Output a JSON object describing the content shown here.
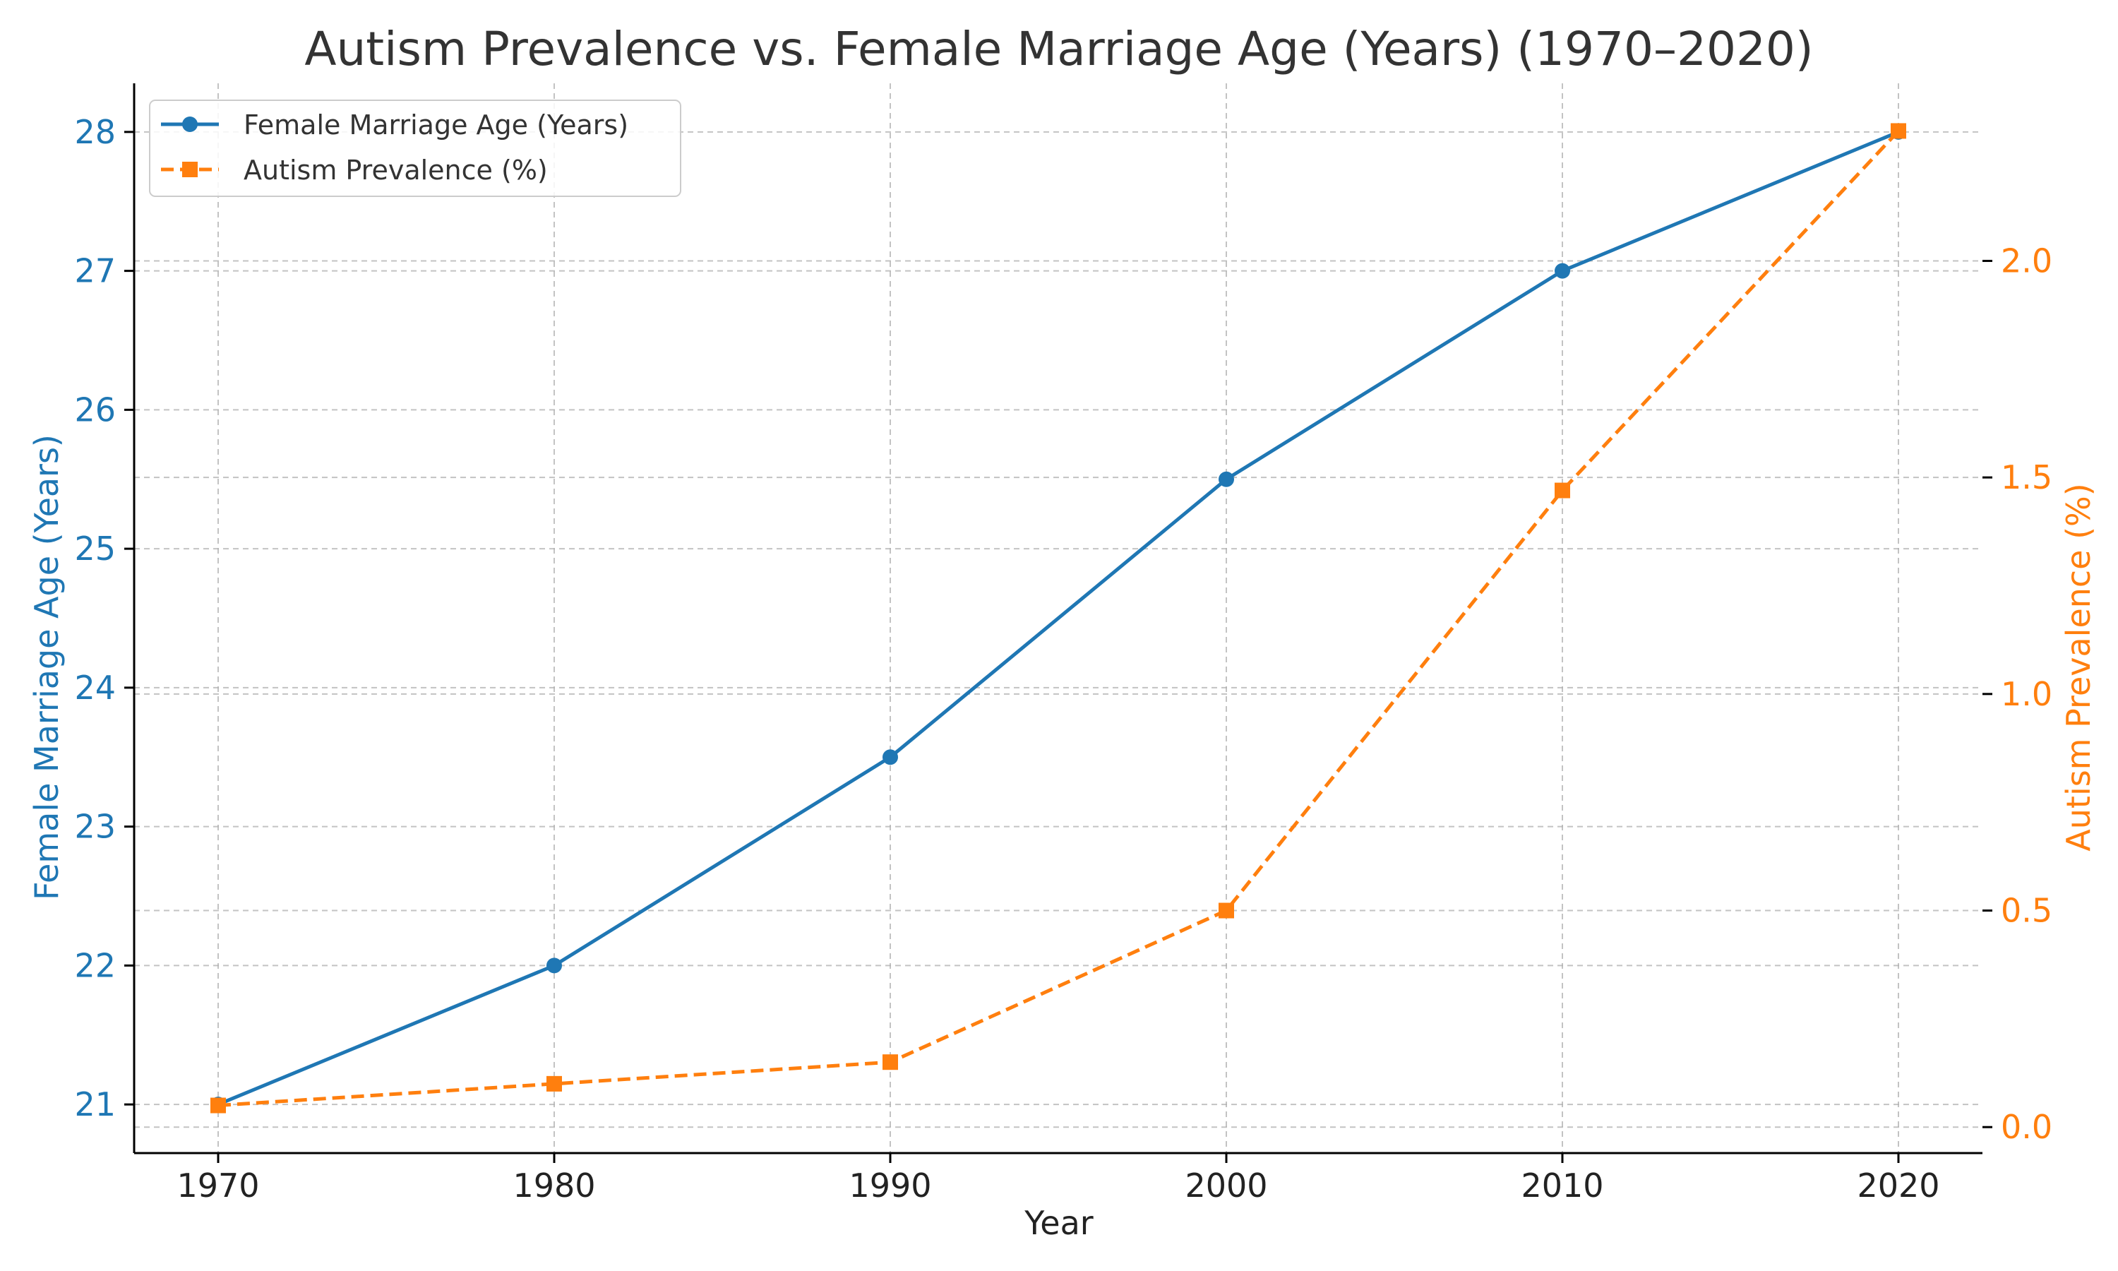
{
  "chart_data": {
    "type": "line",
    "title": "Autism Prevalence vs. Female Marriage Age (Years) (1970–2020)",
    "xlabel": "Year",
    "x": [
      1970,
      1980,
      1990,
      2000,
      2010,
      2020
    ],
    "x_ticks": [
      "1970",
      "1980",
      "1990",
      "2000",
      "2010",
      "2020"
    ],
    "grid": true,
    "legend_position": "top-left",
    "left_axis": {
      "label": "Female Marriage Age (Years)",
      "ylim": [
        20.65,
        28.35
      ],
      "ticks": [
        21,
        22,
        23,
        24,
        25,
        26,
        27,
        28
      ],
      "color": "#1f77b4"
    },
    "right_axis": {
      "label": "Autism Prevalence (%)",
      "ylim": [
        -0.06,
        2.41
      ],
      "ticks": [
        "0.0",
        "0.5",
        "1.0",
        "1.5",
        "2.0"
      ],
      "color": "#ff7f0e"
    },
    "series": [
      {
        "name": "Female Marriage Age (Years)",
        "axis": "left",
        "values": [
          21,
          22,
          23.5,
          25.5,
          27,
          28
        ],
        "color": "#1f77b4",
        "line_style": "solid",
        "marker": "circle"
      },
      {
        "name": "Autism Prevalence (%)",
        "axis": "right",
        "values": [
          0.05,
          0.1,
          0.15,
          0.5,
          1.47,
          2.3
        ],
        "color": "#ff7f0e",
        "line_style": "dashed",
        "marker": "square"
      }
    ]
  }
}
